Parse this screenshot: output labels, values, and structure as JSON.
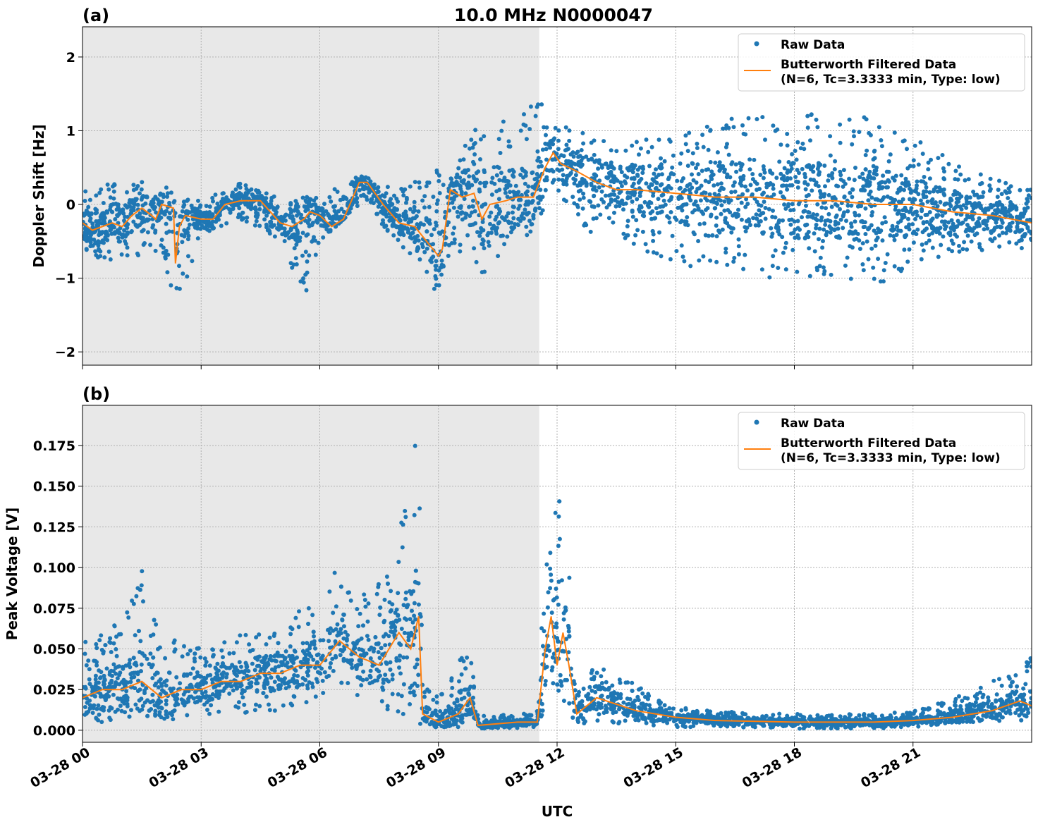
{
  "title": "10.0 MHz N0000047",
  "xlabel": "UTC",
  "colors": {
    "raw": "#1f77b4",
    "filtered": "#ff7f0e",
    "shade": "#e8e8e8"
  },
  "chart_data": [
    {
      "panel_label": "(a)",
      "type": "scatter+line",
      "ylabel": "Doppler Shift [Hz]",
      "xlim_hours": [
        0,
        24
      ],
      "ylim": [
        -2.18,
        2.41
      ],
      "grid": true,
      "legend_position": "top-right",
      "x_ticks": [
        {
          "h": 0,
          "label": "03-28 00"
        },
        {
          "h": 3,
          "label": "03-28 03"
        },
        {
          "h": 6,
          "label": "03-28 06"
        },
        {
          "h": 9,
          "label": "03-28 09"
        },
        {
          "h": 12,
          "label": "03-28 12"
        },
        {
          "h": 15,
          "label": "03-28 15"
        },
        {
          "h": 18,
          "label": "03-28 18"
        },
        {
          "h": 21,
          "label": "03-28 21"
        }
      ],
      "y_ticks": [
        {
          "v": 2,
          "label": "2"
        },
        {
          "v": 1,
          "label": "1"
        },
        {
          "v": 0,
          "label": "0"
        },
        {
          "v": -1,
          "label": "−1"
        },
        {
          "v": -2,
          "label": "−2"
        }
      ],
      "shaded_region_hours": [
        0,
        11.55
      ],
      "legend": [
        "Raw Data",
        "Butterworth Filtered Data",
        "(N=6, Tc=3.3333 min, Type: low)"
      ],
      "raw_envelope": {
        "x_hours": [
          0,
          1,
          2,
          2.35,
          3,
          4,
          5,
          5.6,
          6,
          7,
          8,
          9,
          9.3,
          10,
          11,
          11.7,
          12,
          13,
          14,
          15,
          16,
          17,
          18,
          19,
          20,
          21,
          22,
          23,
          24
        ],
        "low": [
          -0.7,
          -0.8,
          -0.6,
          -1.5,
          -0.4,
          -0.2,
          -0.5,
          -1.3,
          -0.5,
          0.0,
          -0.5,
          -1.3,
          -0.6,
          -1.0,
          -0.6,
          -0.2,
          0.1,
          -0.5,
          -0.6,
          -0.8,
          -0.9,
          -1.0,
          -1.0,
          -1.0,
          -1.1,
          -0.9,
          -0.7,
          -0.6,
          -0.6
        ],
        "high": [
          0.2,
          0.35,
          0.3,
          0.1,
          0.05,
          0.3,
          0.1,
          0.1,
          0.1,
          0.4,
          0.2,
          0.5,
          0.4,
          1.2,
          1.3,
          1.4,
          1.1,
          0.9,
          0.9,
          1.0,
          1.2,
          1.3,
          1.3,
          1.2,
          1.2,
          0.9,
          0.6,
          0.4,
          0.2
        ]
      },
      "filtered": {
        "x_hours": [
          0,
          0.25,
          0.5,
          0.75,
          1,
          1.25,
          1.5,
          1.75,
          1.85,
          2,
          2.3,
          2.35,
          2.45,
          2.6,
          3,
          3.3,
          3.6,
          4,
          4.5,
          5,
          5.3,
          5.6,
          5.75,
          6,
          6.3,
          6.6,
          7,
          7.2,
          7.6,
          8,
          8.4,
          8.7,
          9,
          9.1,
          9.3,
          9.6,
          9.9,
          10.1,
          10.3,
          10.7,
          11,
          11.4,
          11.7,
          11.9,
          12.1,
          12.5,
          13,
          13.5,
          14,
          15,
          16,
          17,
          18,
          19,
          20,
          21,
          22,
          23,
          24
        ],
        "values": [
          -0.25,
          -0.35,
          -0.3,
          -0.25,
          -0.3,
          -0.15,
          -0.05,
          -0.15,
          -0.2,
          0.0,
          -0.05,
          -0.8,
          -0.3,
          -0.15,
          -0.2,
          -0.2,
          0.0,
          0.05,
          0.05,
          -0.25,
          -0.3,
          -0.2,
          -0.1,
          -0.15,
          -0.3,
          -0.2,
          0.3,
          0.3,
          0.0,
          -0.25,
          -0.3,
          -0.5,
          -0.7,
          -0.6,
          0.2,
          0.1,
          0.15,
          -0.2,
          0.0,
          0.05,
          0.1,
          0.1,
          0.5,
          0.7,
          0.55,
          0.45,
          0.3,
          0.2,
          0.2,
          0.15,
          0.1,
          0.1,
          0.05,
          0.05,
          0.0,
          0.0,
          -0.1,
          -0.15,
          -0.25
        ]
      }
    },
    {
      "panel_label": "(b)",
      "type": "scatter+line",
      "ylabel": "Peak Voltage [V]",
      "xlim_hours": [
        0,
        24
      ],
      "ylim": [
        -0.0074,
        0.1997
      ],
      "grid": true,
      "legend_position": "top-right",
      "x_ticks": [
        {
          "h": 0,
          "label": "03-28 00"
        },
        {
          "h": 3,
          "label": "03-28 03"
        },
        {
          "h": 6,
          "label": "03-28 06"
        },
        {
          "h": 9,
          "label": "03-28 09"
        },
        {
          "h": 12,
          "label": "03-28 12"
        },
        {
          "h": 15,
          "label": "03-28 15"
        },
        {
          "h": 18,
          "label": "03-28 18"
        },
        {
          "h": 21,
          "label": "03-28 21"
        }
      ],
      "y_ticks": [
        {
          "v": 0,
          "label": "0.000"
        },
        {
          "v": 0.025,
          "label": "0.025"
        },
        {
          "v": 0.05,
          "label": "0.050"
        },
        {
          "v": 0.075,
          "label": "0.075"
        },
        {
          "v": 0.1,
          "label": "0.100"
        },
        {
          "v": 0.125,
          "label": "0.125"
        },
        {
          "v": 0.15,
          "label": "0.150"
        },
        {
          "v": 0.175,
          "label": "0.175"
        }
      ],
      "shaded_region_hours": [
        0,
        11.55
      ],
      "legend": [
        "Raw Data",
        "Butterworth Filtered Data",
        "(N=6, Tc=3.3333 min, Type: low)"
      ],
      "raw_envelope": {
        "x_hours": [
          0,
          1,
          1.5,
          2,
          3,
          4,
          5,
          6,
          6.5,
          7,
          8,
          8.5,
          8.6,
          9,
          9.5,
          9.8,
          10,
          11,
          11.5,
          11.8,
          12.2,
          12.5,
          13,
          14,
          15,
          16,
          18,
          20,
          21,
          22,
          23,
          24
        ],
        "low": [
          0.005,
          0.005,
          0.01,
          0.005,
          0.01,
          0.01,
          0.01,
          0.02,
          0.03,
          0.02,
          0.01,
          0.005,
          0.002,
          0.002,
          0.002,
          0.005,
          0.001,
          0.001,
          0.001,
          0.01,
          0.01,
          0.003,
          0.005,
          0.003,
          0.002,
          0.002,
          0.001,
          0.001,
          0.002,
          0.004,
          0.005,
          0.005
        ],
        "high": [
          0.055,
          0.07,
          0.1,
          0.06,
          0.05,
          0.06,
          0.06,
          0.09,
          0.1,
          0.08,
          0.12,
          0.19,
          0.03,
          0.02,
          0.045,
          0.05,
          0.01,
          0.01,
          0.012,
          0.155,
          0.135,
          0.03,
          0.04,
          0.03,
          0.015,
          0.012,
          0.01,
          0.01,
          0.012,
          0.02,
          0.03,
          0.045
        ]
      },
      "filtered": {
        "x_hours": [
          0,
          0.5,
          1,
          1.5,
          2,
          2.5,
          3,
          3.5,
          4,
          4.5,
          5,
          5.5,
          6,
          6.5,
          7,
          7.5,
          8,
          8.3,
          8.5,
          8.6,
          9,
          9.5,
          9.8,
          10,
          11,
          11.5,
          11.7,
          11.85,
          12,
          12.15,
          12.3,
          12.5,
          13,
          14,
          15,
          16,
          18,
          20,
          21,
          22,
          23,
          23.7,
          24
        ],
        "values": [
          0.02,
          0.025,
          0.025,
          0.03,
          0.02,
          0.025,
          0.025,
          0.03,
          0.03,
          0.035,
          0.035,
          0.04,
          0.04,
          0.055,
          0.045,
          0.04,
          0.06,
          0.05,
          0.07,
          0.01,
          0.005,
          0.01,
          0.02,
          0.003,
          0.005,
          0.005,
          0.05,
          0.07,
          0.04,
          0.06,
          0.04,
          0.01,
          0.02,
          0.012,
          0.008,
          0.006,
          0.005,
          0.005,
          0.006,
          0.008,
          0.012,
          0.018,
          0.015
        ]
      }
    }
  ]
}
